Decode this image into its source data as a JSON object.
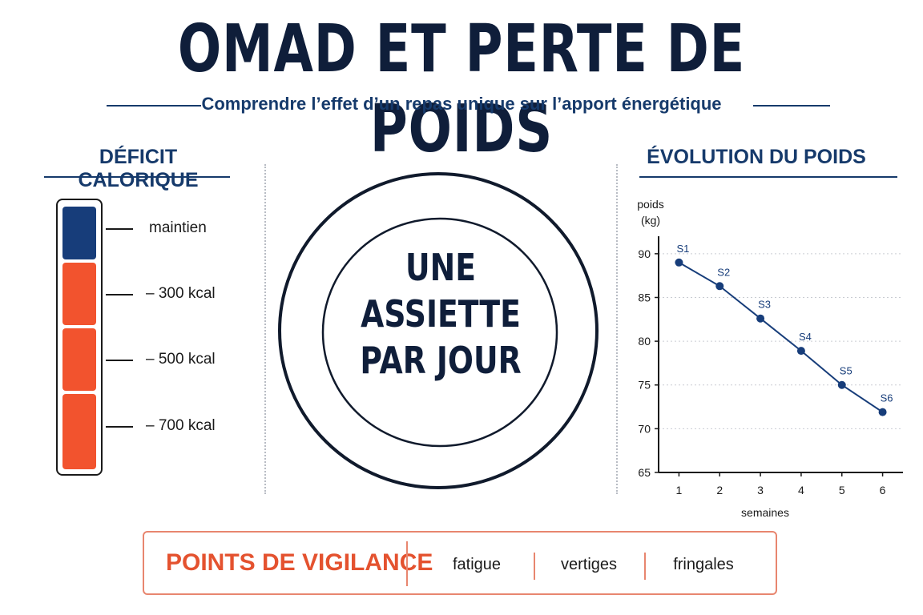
{
  "header": {
    "title": "OMAD ET PERTE DE POIDS",
    "subtitle": "Comprendre l’effet d’un repas unique sur l’apport énergétique"
  },
  "deficit": {
    "title": "DÉFICIT CALORIQUE",
    "levels": [
      "maintien",
      "– 300 kcal",
      "– 500 kcal",
      "– 700 kcal"
    ],
    "colors": {
      "maintien": "#173d7a",
      "deficit": "#f2532e"
    }
  },
  "plate": {
    "lines": [
      "UNE",
      "ASSIETTE",
      "PAR JOUR"
    ]
  },
  "weight": {
    "title": "ÉVOLUTION DU POIDS"
  },
  "chart_data": {
    "type": "line",
    "x": [
      1,
      2,
      3,
      4,
      5,
      6
    ],
    "point_labels": [
      "S1",
      "S2",
      "S3",
      "S4",
      "S5",
      "S6"
    ],
    "series": [
      {
        "values": [
          89,
          86.3,
          82.6,
          78.9,
          75,
          71.9
        ]
      }
    ],
    "xlabel": "semaines",
    "ylabel": "poids (kg)",
    "ylabel_lines": [
      "poids",
      "(kg)"
    ],
    "xlim": [
      0.5,
      6.5
    ],
    "ylim": [
      65,
      92
    ],
    "yticks": [
      65,
      70,
      75,
      80,
      85,
      90
    ],
    "xticks": [
      1,
      2,
      3,
      4,
      5,
      6
    ],
    "grid": "horizontal dotted",
    "color": "#173d7a"
  },
  "vigilance": {
    "title": "POINTS DE VIGILANCE",
    "items": [
      "fatigue",
      "vertiges",
      "fringales"
    ]
  }
}
